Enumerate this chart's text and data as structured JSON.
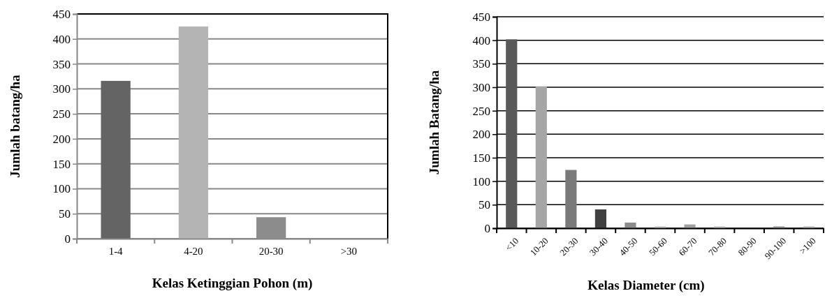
{
  "chart_data": [
    {
      "type": "bar",
      "xlabel": "Kelas Ketinggian Pohon (m)",
      "ylabel": "Jumlah batang/ha",
      "categories": [
        "1-4",
        "4-20",
        "20-30",
        ">30"
      ],
      "values": [
        316,
        425,
        43,
        0
      ],
      "colors": [
        "#646464",
        "#b4b4b4",
        "#8c8c8c",
        "#a0a0a0"
      ],
      "ylim": [
        0,
        450
      ],
      "yticks": [
        0,
        50,
        100,
        150,
        200,
        250,
        300,
        350,
        400,
        450
      ],
      "grid": "y"
    },
    {
      "type": "bar",
      "xlabel": "Kelas Diameter (cm)",
      "ylabel": "Jumlah Batang/ha",
      "categories": [
        "<10",
        "10-20",
        "20-30",
        "30-40",
        "40-50",
        "50-60",
        "60-70",
        "70-80",
        "80-90",
        "90-100",
        ">100"
      ],
      "values": [
        402,
        302,
        124,
        40,
        12,
        4,
        8,
        4,
        0,
        4,
        4
      ],
      "colors": [
        "#595959",
        "#a6a6a6",
        "#7a7a7a",
        "#404040",
        "#8c8c8c",
        "#c8c8c8",
        "#a0a0a0",
        "#c8c8c8",
        "#a0a0a0",
        "#a0a0a0",
        "#bfbfbf"
      ],
      "ylim": [
        0,
        450
      ],
      "yticks": [
        0,
        50,
        100,
        150,
        200,
        250,
        300,
        350,
        400,
        450
      ],
      "grid": "y"
    }
  ]
}
